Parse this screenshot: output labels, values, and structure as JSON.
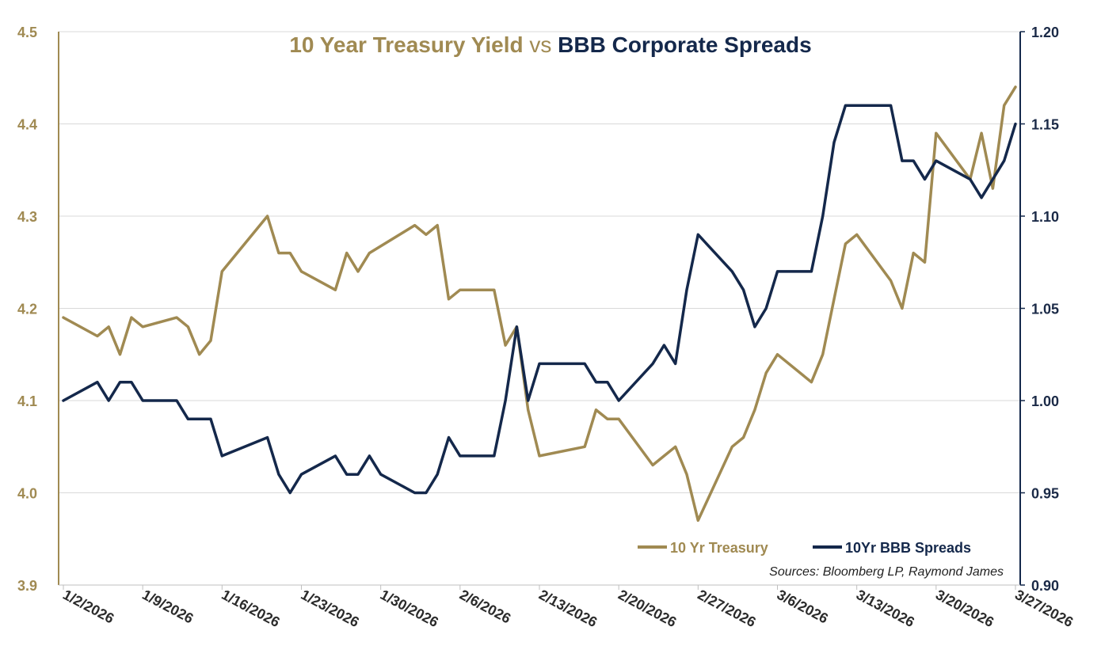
{
  "chart_data": {
    "type": "line",
    "title": {
      "part1": "10 Year Treasury Yield",
      "part2": " vs ",
      "part3": "BBB Corporate Spreads"
    },
    "x_tick_labels": [
      "1/2/2026",
      "1/9/2026",
      "1/16/2026",
      "1/23/2026",
      "1/30/2026",
      "2/6/2026",
      "2/13/2026",
      "2/20/2026",
      "2/27/2026",
      "3/6/2026",
      "3/13/2026",
      "3/20/2026",
      "3/27/2026"
    ],
    "y_left": {
      "ticks": [
        "4.5",
        "4.4",
        "4.3",
        "4.2",
        "4.1",
        "4.0",
        "3.9"
      ],
      "ylim": [
        3.9,
        4.5
      ]
    },
    "y_right": {
      "ticks": [
        "1.20",
        "1.15",
        "1.10",
        "1.05",
        "1.00",
        "0.95",
        "0.90"
      ],
      "ylim": [
        0.9,
        1.2
      ]
    },
    "grid": true,
    "legend_position": "bottom-right",
    "source": "Sources: Bloomberg LP, Raymond James",
    "series": [
      {
        "name": "10 Yr Treasury",
        "axis": "left",
        "color": "#a08a52",
        "points": [
          [
            "1/2/2026",
            4.19
          ],
          [
            "1/5/2026",
            4.17
          ],
          [
            "1/6/2026",
            4.18
          ],
          [
            "1/7/2026",
            4.15
          ],
          [
            "1/8/2026",
            4.19
          ],
          [
            "1/9/2026",
            4.18
          ],
          [
            "1/12/2026",
            4.19
          ],
          [
            "1/13/2026",
            4.18
          ],
          [
            "1/14/2026",
            4.15
          ],
          [
            "1/15/2026",
            4.165
          ],
          [
            "1/16/2026",
            4.24
          ],
          [
            "1/20/2026",
            4.3
          ],
          [
            "1/21/2026",
            4.26
          ],
          [
            "1/22/2026",
            4.26
          ],
          [
            "1/23/2026",
            4.24
          ],
          [
            "1/26/2026",
            4.22
          ],
          [
            "1/27/2026",
            4.26
          ],
          [
            "1/28/2026",
            4.24
          ],
          [
            "1/29/2026",
            4.26
          ],
          [
            "2/2/2026",
            4.29
          ],
          [
            "2/3/2026",
            4.28
          ],
          [
            "2/4/2026",
            4.29
          ],
          [
            "2/5/2026",
            4.21
          ],
          [
            "2/6/2026",
            4.22
          ],
          [
            "2/9/2026",
            4.22
          ],
          [
            "2/10/2026",
            4.16
          ],
          [
            "2/11/2026",
            4.18
          ],
          [
            "2/12/2026",
            4.09
          ],
          [
            "2/13/2026",
            4.04
          ],
          [
            "2/17/2026",
            4.05
          ],
          [
            "2/18/2026",
            4.09
          ],
          [
            "2/19/2026",
            4.08
          ],
          [
            "2/20/2026",
            4.08
          ],
          [
            "2/23/2026",
            4.03
          ],
          [
            "2/24/2026",
            4.04
          ],
          [
            "2/25/2026",
            4.05
          ],
          [
            "2/26/2026",
            4.02
          ],
          [
            "2/27/2026",
            3.97
          ],
          [
            "3/2/2026",
            4.05
          ],
          [
            "3/3/2026",
            4.06
          ],
          [
            "3/4/2026",
            4.09
          ],
          [
            "3/5/2026",
            4.13
          ],
          [
            "3/6/2026",
            4.15
          ],
          [
            "3/9/2026",
            4.12
          ],
          [
            "3/10/2026",
            4.15
          ],
          [
            "3/11/2026",
            4.21
          ],
          [
            "3/12/2026",
            4.27
          ],
          [
            "3/13/2026",
            4.28
          ],
          [
            "3/16/2026",
            4.23
          ],
          [
            "3/17/2026",
            4.2
          ],
          [
            "3/18/2026",
            4.26
          ],
          [
            "3/19/2026",
            4.25
          ],
          [
            "3/20/2026",
            4.39
          ],
          [
            "3/23/2026",
            4.34
          ],
          [
            "3/24/2026",
            4.39
          ],
          [
            "3/25/2026",
            4.33
          ],
          [
            "3/26/2026",
            4.42
          ],
          [
            "3/27/2026",
            4.44
          ]
        ]
      },
      {
        "name": "10Yr BBB Spreads",
        "axis": "right",
        "color": "#14284b",
        "points": [
          [
            "1/2/2026",
            1.0
          ],
          [
            "1/5/2026",
            1.01
          ],
          [
            "1/6/2026",
            1.0
          ],
          [
            "1/7/2026",
            1.01
          ],
          [
            "1/8/2026",
            1.01
          ],
          [
            "1/9/2026",
            1.0
          ],
          [
            "1/12/2026",
            1.0
          ],
          [
            "1/13/2026",
            0.99
          ],
          [
            "1/15/2026",
            0.99
          ],
          [
            "1/16/2026",
            0.97
          ],
          [
            "1/20/2026",
            0.98
          ],
          [
            "1/21/2026",
            0.96
          ],
          [
            "1/22/2026",
            0.95
          ],
          [
            "1/23/2026",
            0.96
          ],
          [
            "1/26/2026",
            0.97
          ],
          [
            "1/27/2026",
            0.96
          ],
          [
            "1/28/2026",
            0.96
          ],
          [
            "1/29/2026",
            0.97
          ],
          [
            "1/30/2026",
            0.96
          ],
          [
            "2/2/2026",
            0.95
          ],
          [
            "2/3/2026",
            0.95
          ],
          [
            "2/4/2026",
            0.96
          ],
          [
            "2/5/2026",
            0.98
          ],
          [
            "2/6/2026",
            0.97
          ],
          [
            "2/9/2026",
            0.97
          ],
          [
            "2/10/2026",
            1.0
          ],
          [
            "2/11/2026",
            1.04
          ],
          [
            "2/12/2026",
            1.0
          ],
          [
            "2/13/2026",
            1.02
          ],
          [
            "2/17/2026",
            1.02
          ],
          [
            "2/18/2026",
            1.01
          ],
          [
            "2/19/2026",
            1.01
          ],
          [
            "2/20/2026",
            1.0
          ],
          [
            "2/23/2026",
            1.02
          ],
          [
            "2/24/2026",
            1.03
          ],
          [
            "2/25/2026",
            1.02
          ],
          [
            "2/26/2026",
            1.06
          ],
          [
            "2/27/2026",
            1.09
          ],
          [
            "3/2/2026",
            1.07
          ],
          [
            "3/3/2026",
            1.06
          ],
          [
            "3/4/2026",
            1.04
          ],
          [
            "3/5/2026",
            1.05
          ],
          [
            "3/6/2026",
            1.07
          ],
          [
            "3/9/2026",
            1.07
          ],
          [
            "3/10/2026",
            1.1
          ],
          [
            "3/11/2026",
            1.14
          ],
          [
            "3/12/2026",
            1.16
          ],
          [
            "3/13/2026",
            1.16
          ],
          [
            "3/16/2026",
            1.16
          ],
          [
            "3/17/2026",
            1.13
          ],
          [
            "3/18/2026",
            1.13
          ],
          [
            "3/19/2026",
            1.12
          ],
          [
            "3/20/2026",
            1.13
          ],
          [
            "3/23/2026",
            1.12
          ],
          [
            "3/24/2026",
            1.11
          ],
          [
            "3/25/2026",
            1.12
          ],
          [
            "3/26/2026",
            1.13
          ],
          [
            "3/27/2026",
            1.15
          ]
        ]
      }
    ]
  }
}
